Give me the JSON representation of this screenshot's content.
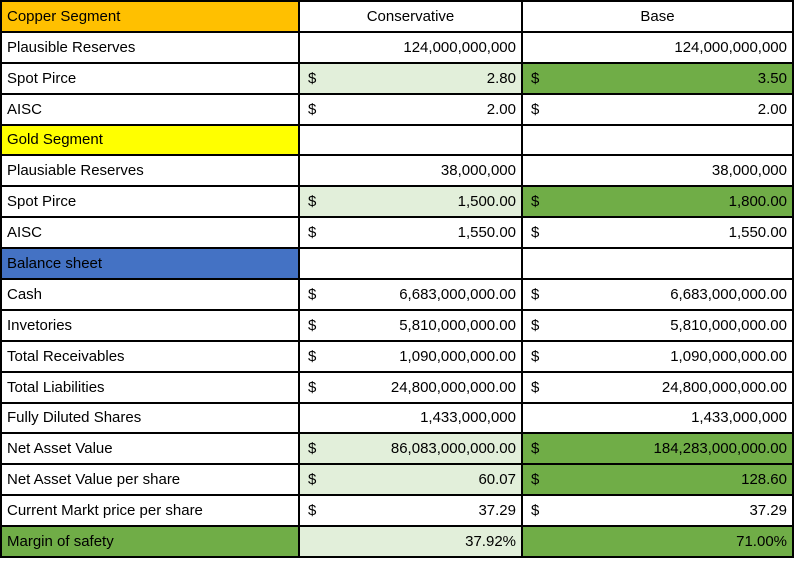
{
  "currency_symbol": "$",
  "column_headers": {
    "conservative": "Conservative",
    "base": "Base"
  },
  "colors": {
    "copper_header_bg": "#FFC000",
    "gold_header_bg": "#FFFF00",
    "balance_header_bg": "#4472C4",
    "conservative_highlight_bg": "#E2EFDA",
    "base_highlight_bg": "#70AD47",
    "gridline": "#000000",
    "text": "#000000"
  },
  "rows": [
    {
      "label": "Copper Segment"
    },
    {
      "label": "Plausible Reserves",
      "cons": "124,000,000,000",
      "base": "124,000,000,000"
    },
    {
      "label": "Spot Pirce",
      "cons": "2.80",
      "base": "3.50"
    },
    {
      "label": "AISC",
      "cons": "2.00",
      "base": "2.00"
    },
    {
      "label": "Gold Segment",
      "cons": "",
      "base": ""
    },
    {
      "label": "Plausiable Reserves",
      "cons": "38,000,000",
      "base": "38,000,000"
    },
    {
      "label": "Spot Pirce",
      "cons": "1,500.00",
      "base": "1,800.00"
    },
    {
      "label": "AISC",
      "cons": "1,550.00",
      "base": "1,550.00"
    },
    {
      "label": "Balance sheet",
      "cons": "",
      "base": ""
    },
    {
      "label": "Cash",
      "cons": "6,683,000,000.00",
      "base": "6,683,000,000.00"
    },
    {
      "label": "Invetories",
      "cons": "5,810,000,000.00",
      "base": "5,810,000,000.00"
    },
    {
      "label": "Total Receivables",
      "cons": "1,090,000,000.00",
      "base": "1,090,000,000.00"
    },
    {
      "label": "Total Liabilities",
      "cons": "24,800,000,000.00",
      "base": "24,800,000,000.00"
    },
    {
      "label": "Fully Diluted Shares",
      "cons": "1,433,000,000",
      "base": "1,433,000,000"
    },
    {
      "label": "Net Asset Value",
      "cons": "86,083,000,000.00",
      "base": "184,283,000,000.00"
    },
    {
      "label": "Net Asset Value per share",
      "cons": "60.07",
      "base": "128.60"
    },
    {
      "label": "Current Markt price per share",
      "cons": "37.29",
      "base": "37.29"
    },
    {
      "label": "Margin of safety",
      "cons": "37.92%",
      "base": "71.00%"
    }
  ]
}
